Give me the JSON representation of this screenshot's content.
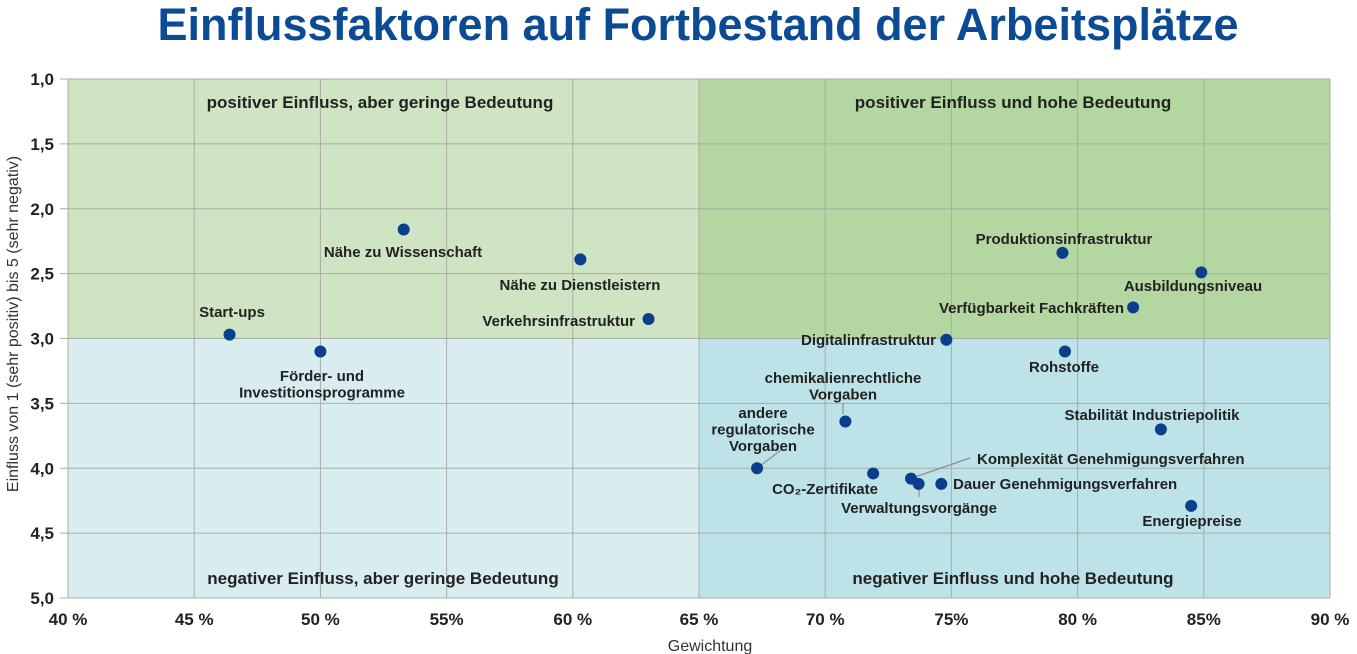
{
  "chart_data": {
    "type": "scatter",
    "title": "Einflussfaktoren auf Fortbestand der Arbeitsplätze",
    "xlabel": "Gewichtung",
    "ylabel": "Einfluss von 1 (sehr positiv) bis 5 (sehr negativ)",
    "xlim": [
      40,
      90
    ],
    "ylim": [
      1,
      5
    ],
    "y_inverted": true,
    "grid": true,
    "x_ticks": [
      40,
      45,
      50,
      55,
      60,
      65,
      70,
      75,
      80,
      85,
      90
    ],
    "x_tick_labels": [
      "40 %",
      "45 %",
      "50 %",
      "55%",
      "60 %",
      "65 %",
      "70 %",
      "75%",
      "80 %",
      "85%",
      "90 %"
    ],
    "y_ticks": [
      1,
      1.5,
      2,
      2.5,
      3,
      3.5,
      4,
      4.5,
      5
    ],
    "y_tick_labels": [
      "1,0",
      "1,5",
      "2,0",
      "2,5",
      "3,0",
      "3,5",
      "4,0",
      "4,5",
      "5,0"
    ],
    "quadrant_split": {
      "x": 65,
      "y": 3.0
    },
    "quadrants": [
      {
        "label": "positiver Einfluss, aber geringe Bedeutung",
        "color": "#cfe4c2"
      },
      {
        "label": "positiver Einfluss und hohe Bedeutung",
        "color": "#b4d6a1"
      },
      {
        "label": "negativer Einfluss, aber geringe Bedeutung",
        "color": "#d9edf1"
      },
      {
        "label": "negativer Einfluss und hohe Bedeutung",
        "color": "#bde2e8"
      }
    ],
    "marker_color": "#0a3f8c",
    "points": [
      {
        "label": [
          "Start-ups"
        ],
        "x": 46.4,
        "y": 2.97
      },
      {
        "label": [
          "Förder- und",
          "Investitionsprogramme"
        ],
        "x": 50.0,
        "y": 3.1
      },
      {
        "label": [
          "Nähe zu Wissenschaft"
        ],
        "x": 53.3,
        "y": 2.16
      },
      {
        "label": [
          "Nähe zu Dienstleistern"
        ],
        "x": 60.3,
        "y": 2.39
      },
      {
        "label": [
          "Verkehrsinfrastruktur"
        ],
        "x": 63.0,
        "y": 2.85
      },
      {
        "label": [
          "Digitalinfrastruktur"
        ],
        "x": 74.8,
        "y": 3.01
      },
      {
        "label": [
          "Produktionsinfrastruktur"
        ],
        "x": 79.4,
        "y": 2.34
      },
      {
        "label": [
          "Ausbildungsniveau"
        ],
        "x": 84.9,
        "y": 2.49
      },
      {
        "label": [
          "Verfügbarkeit Fachkräften"
        ],
        "x": 82.2,
        "y": 2.76
      },
      {
        "label": [
          "Rohstoffe"
        ],
        "x": 79.5,
        "y": 3.1
      },
      {
        "label": [
          "chemikalienrechtliche",
          "Vorgaben"
        ],
        "x": 70.8,
        "y": 3.64
      },
      {
        "label": [
          "Stabilität Industriepolitik"
        ],
        "x": 83.3,
        "y": 3.7
      },
      {
        "label": [
          "andere",
          "regulatorische",
          "Vorgaben"
        ],
        "x": 67.3,
        "y": 4.0
      },
      {
        "label": [
          "CO₂-Zertifikate"
        ],
        "x": 71.9,
        "y": 4.04
      },
      {
        "label": [
          "Komplexität Genehmigungsverfahren"
        ],
        "x": 73.4,
        "y": 4.08
      },
      {
        "label": [
          "Verwaltungsvorgänge"
        ],
        "x": 73.7,
        "y": 4.12
      },
      {
        "label": [
          "Dauer Genehmigungsverfahren"
        ],
        "x": 74.6,
        "y": 4.12
      },
      {
        "label": [
          "Energiepreise"
        ],
        "x": 84.5,
        "y": 4.29
      }
    ]
  }
}
